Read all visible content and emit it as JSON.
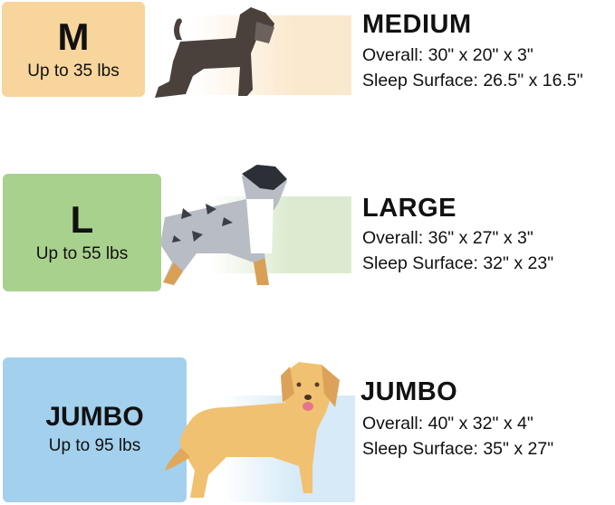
{
  "sizes": [
    {
      "badge": "M",
      "weight": "Up to 35 lbs",
      "title": "MEDIUM",
      "overall": "Overall: 30\" x 20\" x 3\"",
      "sleep": "Sleep Surface: 26.5\" x 16.5\"",
      "color": "#f7d59c",
      "band": "#fbe9cf",
      "dog": "schnauzer-dog"
    },
    {
      "badge": "L",
      "weight": "Up to 55 lbs",
      "title": "LARGE",
      "overall": "Overall: 36\" x 27\" x 3\"",
      "sleep": "Sleep Surface: 32\" x 23\"",
      "color": "#a9d18e",
      "band": "#dcebd0",
      "dog": "australian-shepherd-dog"
    },
    {
      "badge": "JUMBO",
      "weight": "Up to 95 lbs",
      "title": "JUMBO",
      "overall": "Overall: 40\" x 32\" x 4\"",
      "sleep": "Sleep Surface: 35\" x 27\"",
      "color": "#a3d0ec",
      "band": "#d6eaf7",
      "dog": "golden-retriever-dog"
    }
  ]
}
